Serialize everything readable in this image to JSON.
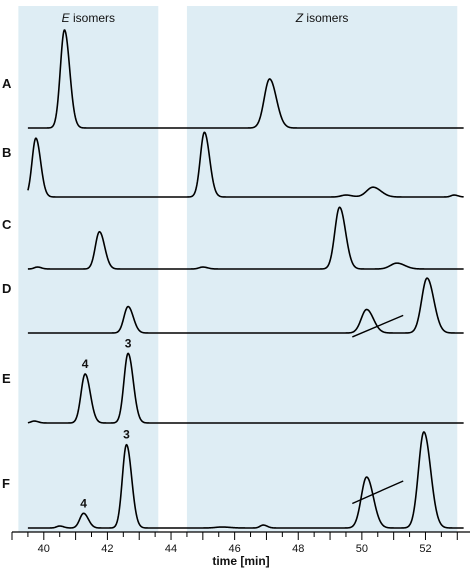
{
  "chart_data": {
    "type": "line",
    "title": "",
    "xlabel": "time [min]",
    "ylabel": "",
    "xlim": [
      39.0,
      53.4
    ],
    "x_ticks": [
      40,
      42,
      44,
      46,
      48,
      50,
      52
    ],
    "x_tick_labels": [
      "40",
      "42",
      "44",
      "46",
      "48",
      "50",
      "52"
    ],
    "grid": false,
    "shaded_regions": [
      {
        "label_italic": "E",
        "label_rest": " isomers",
        "x_range": [
          39.2,
          43.6
        ],
        "color": "#deedf4"
      },
      {
        "label_italic": "Z",
        "label_rest": " isomers",
        "x_range": [
          44.5,
          53.0
        ],
        "color": "#deedf4"
      }
    ],
    "series": [
      {
        "name": "A",
        "x_range": [
          39.5,
          53.2
        ],
        "peaks": [
          {
            "x": 40.65,
            "height": 100,
            "width": 0.13
          },
          {
            "x": 47.1,
            "height": 50,
            "width": 0.17
          }
        ],
        "baseline_segments": []
      },
      {
        "name": "B",
        "x_range": [
          39.5,
          53.2
        ],
        "peaks": [
          {
            "x": 39.75,
            "height": 60,
            "width": 0.12
          },
          {
            "x": 45.05,
            "height": 66,
            "width": 0.13
          },
          {
            "x": 50.35,
            "height": 10,
            "width": 0.2
          },
          {
            "x": 49.5,
            "height": 2,
            "width": 0.15
          },
          {
            "x": 52.9,
            "height": 2,
            "width": 0.1
          }
        ],
        "baseline_segments": []
      },
      {
        "name": "C",
        "x_range": [
          39.5,
          53.2
        ],
        "peaks": [
          {
            "x": 41.75,
            "height": 38,
            "width": 0.13
          },
          {
            "x": 49.3,
            "height": 63,
            "width": 0.15
          },
          {
            "x": 51.1,
            "height": 6,
            "width": 0.2
          },
          {
            "x": 39.8,
            "height": 2,
            "width": 0.1
          },
          {
            "x": 45.0,
            "height": 2,
            "width": 0.12
          }
        ],
        "baseline_segments": []
      },
      {
        "name": "D",
        "x_range": [
          39.5,
          53.2
        ],
        "peaks": [
          {
            "x": 42.65,
            "height": 27,
            "width": 0.13
          },
          {
            "x": 50.15,
            "height": 24,
            "width": 0.17
          },
          {
            "x": 52.05,
            "height": 56,
            "width": 0.17
          }
        ],
        "baseline_segments": [
          {
            "x1": 49.7,
            "y1": -4,
            "x2": 51.3,
            "y2": 18
          }
        ]
      },
      {
        "name": "E",
        "x_range": [
          39.5,
          53.2
        ],
        "peaks": [
          {
            "x": 41.3,
            "height": 50,
            "width": 0.13
          },
          {
            "x": 42.65,
            "height": 71,
            "width": 0.13
          },
          {
            "x": 39.7,
            "height": 2,
            "width": 0.1
          }
        ],
        "baseline_segments": []
      },
      {
        "name": "F",
        "x_range": [
          39.5,
          53.2
        ],
        "peaks": [
          {
            "x": 41.25,
            "height": 15,
            "width": 0.12
          },
          {
            "x": 42.6,
            "height": 85,
            "width": 0.13
          },
          {
            "x": 50.15,
            "height": 52,
            "width": 0.17
          },
          {
            "x": 51.95,
            "height": 98,
            "width": 0.17
          },
          {
            "x": 40.5,
            "height": 2,
            "width": 0.1
          },
          {
            "x": 46.9,
            "height": 3,
            "width": 0.1
          },
          {
            "x": 45.6,
            "height": 1,
            "width": 0.2
          }
        ],
        "baseline_segments": [
          {
            "x1": 49.7,
            "y1": 25,
            "x2": 51.3,
            "y2": 48
          }
        ]
      }
    ],
    "annotations": [
      {
        "series": "E",
        "x": 41.3,
        "text": "4"
      },
      {
        "series": "E",
        "x": 42.65,
        "text": "3"
      },
      {
        "series": "F",
        "x": 41.25,
        "text": "4"
      },
      {
        "series": "F",
        "x": 42.6,
        "text": "3"
      }
    ]
  }
}
